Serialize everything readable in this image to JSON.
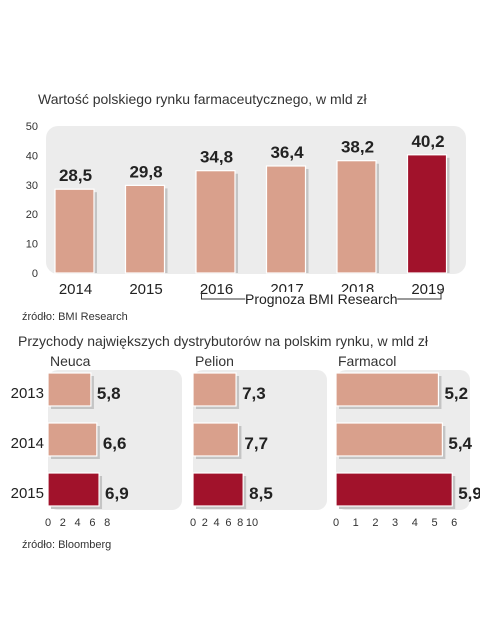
{
  "chart_data": [
    {
      "type": "bar",
      "title": "Wartość polskiego rynku farmaceutycznego, w mld zł",
      "categories": [
        "2014",
        "2015",
        "2016",
        "2017",
        "2018",
        "2019"
      ],
      "values": [
        28.5,
        29.8,
        34.8,
        36.4,
        38.2,
        40.2
      ],
      "value_labels": [
        "28,5",
        "29,8",
        "34,8",
        "36,4",
        "38,2",
        "40,2"
      ],
      "highlight": "2019",
      "ylim": [
        0,
        50
      ],
      "yticks": [
        0,
        10,
        20,
        30,
        40,
        50
      ],
      "forecast": {
        "label": "Prognoza BMI Research",
        "from": "2016",
        "to": "2019"
      },
      "source": "źródło: BMI Research",
      "grid": false
    },
    {
      "type": "bar",
      "orientation": "horizontal",
      "title": "Przychody największych dystrybutorów na polskim rynku, w mld zł",
      "categories": [
        "2013",
        "2014",
        "2015"
      ],
      "highlight": "2015",
      "panels": [
        {
          "name": "Neuca",
          "values": [
            5.8,
            6.6,
            6.9
          ],
          "value_labels": [
            "5,8",
            "6,6",
            "6,9"
          ],
          "xlim": [
            0,
            8
          ],
          "xticks": [
            "0",
            "2",
            "4",
            "6",
            "8"
          ]
        },
        {
          "name": "Pelion",
          "values": [
            7.3,
            7.7,
            8.5
          ],
          "value_labels": [
            "7,3",
            "7,7",
            "8,5"
          ],
          "xlim": [
            0,
            10
          ],
          "xticks": [
            "0",
            "2",
            "4",
            "6",
            "8",
            "10"
          ]
        },
        {
          "name": "Farmacol",
          "values": [
            5.2,
            5.4,
            5.9
          ],
          "value_labels": [
            "5,2",
            "5,4",
            "5,9"
          ],
          "xlim": [
            0,
            6
          ],
          "xticks": [
            "0",
            "1",
            "2",
            "3",
            "4",
            "5",
            "6"
          ]
        }
      ],
      "source": "źródło: Bloomberg",
      "grid": false
    }
  ],
  "colors": {
    "bar": "#d9a08c",
    "bar_highlight": "#a1122b",
    "panel_bg": "#ececec",
    "shadow": "#c4c4c4",
    "text": "#222222",
    "muted": "#555555"
  }
}
